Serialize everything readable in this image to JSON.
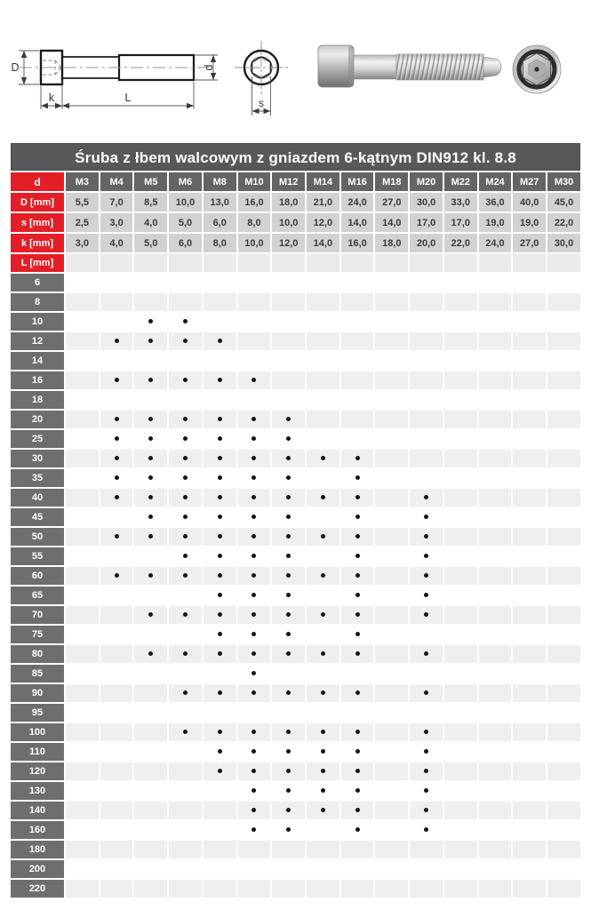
{
  "title": "Śruba z łbem walcowym z gniazdem 6-kątnym DIN912 kl. 8.8",
  "figures": {
    "labels": {
      "D": "D",
      "k": "k",
      "L": "L",
      "d": "d",
      "s": "s"
    }
  },
  "table": {
    "corner_label": "d",
    "columns": [
      "M3",
      "M4",
      "M5",
      "M6",
      "M8",
      "M10",
      "M12",
      "M14",
      "M16",
      "M18",
      "M20",
      "M22",
      "M24",
      "M27",
      "M30"
    ],
    "dimension_rows": [
      {
        "label": "D [mm]",
        "values": [
          "5,5",
          "7,0",
          "8,5",
          "10,0",
          "13,0",
          "16,0",
          "18,0",
          "21,0",
          "24,0",
          "27,0",
          "30,0",
          "33,0",
          "36,0",
          "40,0",
          "45,0"
        ]
      },
      {
        "label": "s [mm]",
        "values": [
          "2,5",
          "3,0",
          "4,0",
          "5,0",
          "6,0",
          "8,0",
          "10,0",
          "12,0",
          "14,0",
          "14,0",
          "17,0",
          "17,0",
          "19,0",
          "19,0",
          "22,0"
        ]
      },
      {
        "label": "k [mm]",
        "values": [
          "3,0",
          "4,0",
          "5,0",
          "6,0",
          "8,0",
          "10,0",
          "12,0",
          "14,0",
          "16,0",
          "18,0",
          "20,0",
          "22,0",
          "24,0",
          "27,0",
          "30,0"
        ]
      }
    ],
    "length_section_label": "L [mm]",
    "length_rows": [
      {
        "length": "6",
        "available": []
      },
      {
        "length": "8",
        "available": []
      },
      {
        "length": "10",
        "available": [
          "M5",
          "M6"
        ]
      },
      {
        "length": "12",
        "available": [
          "M4",
          "M5",
          "M6",
          "M8"
        ]
      },
      {
        "length": "14",
        "available": []
      },
      {
        "length": "16",
        "available": [
          "M4",
          "M5",
          "M6",
          "M8",
          "M10"
        ]
      },
      {
        "length": "18",
        "available": []
      },
      {
        "length": "20",
        "available": [
          "M4",
          "M5",
          "M6",
          "M8",
          "M10",
          "M12"
        ]
      },
      {
        "length": "25",
        "available": [
          "M4",
          "M5",
          "M6",
          "M8",
          "M10",
          "M12"
        ]
      },
      {
        "length": "30",
        "available": [
          "M4",
          "M5",
          "M6",
          "M8",
          "M10",
          "M12",
          "M14",
          "M16"
        ]
      },
      {
        "length": "35",
        "available": [
          "M4",
          "M5",
          "M6",
          "M8",
          "M10",
          "M12",
          "M16"
        ]
      },
      {
        "length": "40",
        "available": [
          "M4",
          "M5",
          "M6",
          "M8",
          "M10",
          "M12",
          "M14",
          "M16",
          "M20"
        ]
      },
      {
        "length": "45",
        "available": [
          "M5",
          "M6",
          "M8",
          "M10",
          "M12",
          "M16",
          "M20"
        ]
      },
      {
        "length": "50",
        "available": [
          "M4",
          "M5",
          "M6",
          "M8",
          "M10",
          "M12",
          "M14",
          "M16",
          "M20"
        ]
      },
      {
        "length": "55",
        "available": [
          "M6",
          "M8",
          "M10",
          "M12",
          "M16",
          "M20"
        ]
      },
      {
        "length": "60",
        "available": [
          "M4",
          "M5",
          "M6",
          "M8",
          "M10",
          "M12",
          "M14",
          "M16",
          "M20"
        ]
      },
      {
        "length": "65",
        "available": [
          "M8",
          "M10",
          "M12",
          "M16",
          "M20"
        ]
      },
      {
        "length": "70",
        "available": [
          "M5",
          "M6",
          "M8",
          "M10",
          "M12",
          "M14",
          "M16",
          "M20"
        ]
      },
      {
        "length": "75",
        "available": [
          "M8",
          "M10",
          "M12",
          "M16"
        ]
      },
      {
        "length": "80",
        "available": [
          "M5",
          "M6",
          "M8",
          "M10",
          "M12",
          "M14",
          "M16",
          "M20"
        ]
      },
      {
        "length": "85",
        "available": [
          "M10"
        ]
      },
      {
        "length": "90",
        "available": [
          "M6",
          "M8",
          "M10",
          "M12",
          "M14",
          "M16",
          "M20"
        ]
      },
      {
        "length": "95",
        "available": []
      },
      {
        "length": "100",
        "available": [
          "M6",
          "M8",
          "M10",
          "M12",
          "M14",
          "M16",
          "M20"
        ]
      },
      {
        "length": "110",
        "available": [
          "M8",
          "M10",
          "M12",
          "M14",
          "M16",
          "M20"
        ]
      },
      {
        "length": "120",
        "available": [
          "M8",
          "M10",
          "M12",
          "M14",
          "M16",
          "M20"
        ]
      },
      {
        "length": "130",
        "available": [
          "M10",
          "M12",
          "M14",
          "M16",
          "M20"
        ]
      },
      {
        "length": "140",
        "available": [
          "M10",
          "M12",
          "M14",
          "M16",
          "M20"
        ]
      },
      {
        "length": "160",
        "available": [
          "M10",
          "M12",
          "M16",
          "M20"
        ]
      },
      {
        "length": "180",
        "available": []
      },
      {
        "length": "200",
        "available": []
      },
      {
        "length": "220",
        "available": []
      }
    ]
  },
  "colors": {
    "accent_red": "#e31e26",
    "title_bar": "#58585a",
    "column_header": "#636466",
    "row_label": "#6d6e70",
    "dimension_cell": "#d2d2d3",
    "stripe": "#efefef",
    "dot": "#151515"
  }
}
